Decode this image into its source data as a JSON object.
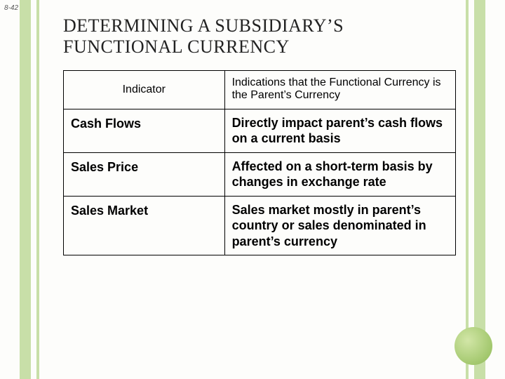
{
  "page_number": "8-42",
  "title_line1": "DETERMINING A SUBSIDIARY’S",
  "title_line2": "FUNCTIONAL CURRENCY",
  "table": {
    "header": {
      "indicator": "Indicator",
      "description": "Indications that the Functional Currency is the Parent’s Currency"
    },
    "rows": [
      {
        "indicator": "Cash Flows",
        "description": "Directly impact parent’s cash flows on a current basis"
      },
      {
        "indicator": "Sales Price",
        "description": "Affected on a short-term basis by changes in exchange rate"
      },
      {
        "indicator": "Sales Market",
        "description": "Sales market mostly in parent’s country or sales denominated in parent’s currency"
      }
    ]
  },
  "colors": {
    "stripe": "#c8dfa8",
    "circle_light": "#d2e6a7",
    "circle_dark": "#a3c86e",
    "background": "#fdfdfb",
    "text": "#222222"
  }
}
